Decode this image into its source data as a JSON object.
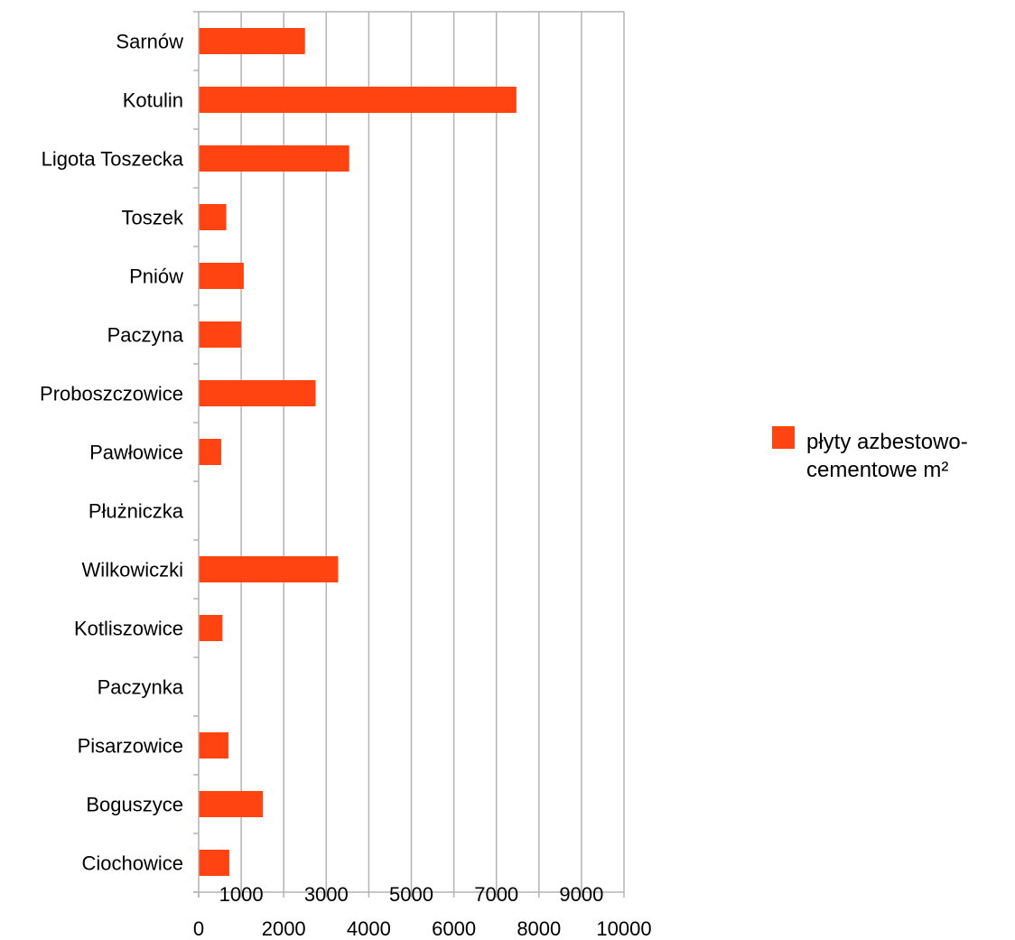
{
  "chart_data": {
    "type": "bar",
    "orientation": "horizontal",
    "categories": [
      "Sarnów",
      "Kotulin",
      "Ligota Toszecka",
      "Toszek",
      "Pniów",
      "Paczyna",
      "Proboszczowice",
      "Pawłowice",
      "Płużniczka",
      "Wilkowiczki",
      "Kotliszowice",
      "Paczynka",
      "Pisarzowice",
      "Boguszyce",
      "Ciochowice"
    ],
    "series": [
      {
        "name": "płyty azbestowo-cementowe m²",
        "values": [
          2500,
          7470,
          3540,
          650,
          1060,
          1000,
          2750,
          530,
          0,
          3280,
          560,
          0,
          700,
          1510,
          720
        ]
      }
    ],
    "xlim": [
      0,
      10000
    ],
    "xticks": [
      0,
      1000,
      2000,
      3000,
      4000,
      5000,
      6000,
      7000,
      8000,
      9000,
      10000
    ],
    "xtick_labels_row1": [
      "1000",
      "3000",
      "5000",
      "7000",
      "9000"
    ],
    "xtick_labels_row2": [
      "0",
      "2000",
      "4000",
      "6000",
      "8000",
      "10000"
    ],
    "grid": true,
    "legend_position": "right",
    "legend_lines": [
      "płyty azbestowo-",
      "cementowe m²"
    ],
    "colors": {
      "bar": "#ff4411",
      "grid": "#b3b3b3",
      "axis": "#b3b3b3"
    }
  }
}
